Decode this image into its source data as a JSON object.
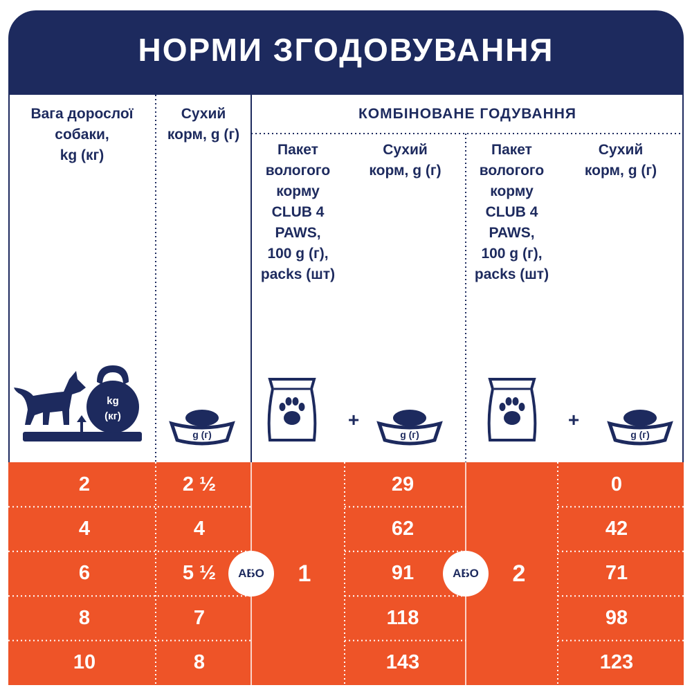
{
  "header": {
    "title": "НОРМИ ЗГОДОВУВАННЯ"
  },
  "table": {
    "weight_header": "Вага дорослої\nсобаки,\nkg (кг)",
    "dry_header": "Сухий\nкорм, g (г)",
    "combined": {
      "title": "КОМБІНОВАНЕ ГОДУВАННЯ",
      "options": [
        {
          "pack_header": "Пакет\nвологого\nкорму\nCLUB 4\nPAWS,\n100 g (г),\npacks (шт)",
          "dry_header": "Сухий\nкорм, g (г)",
          "packs": "1"
        },
        {
          "pack_header": "Пакет\nвологого\nкорму\nCLUB 4\nPAWS,\n100 g (г),\npacks (шт)",
          "dry_header": "Сухий\nкорм, g (г)",
          "packs": "2"
        }
      ]
    },
    "or_label": "АБО",
    "rows": [
      [
        "2",
        "2 ½",
        "29",
        "0"
      ],
      [
        "4",
        "4",
        "62",
        "42"
      ],
      [
        "6",
        "5 ½",
        "91",
        "71"
      ],
      [
        "8",
        "7",
        "118",
        "98"
      ],
      [
        "10",
        "8",
        "143",
        "123"
      ]
    ]
  },
  "icons": {
    "kettlebell": [
      "kg",
      "(кг)"
    ],
    "bowl": "g (г)",
    "plus": "+"
  }
}
